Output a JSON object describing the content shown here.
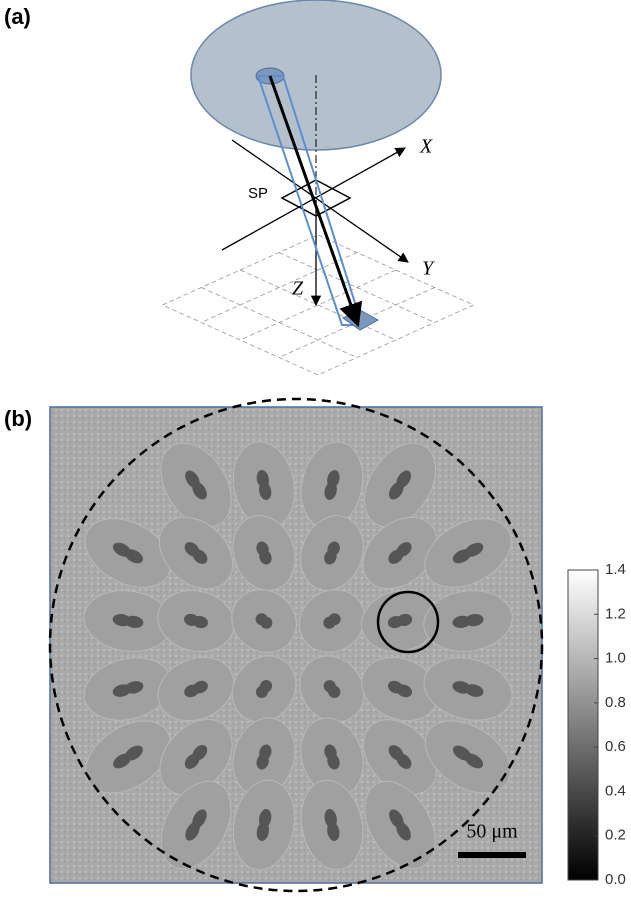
{
  "panel_a": {
    "label": "(a)",
    "axis_x": "X",
    "axis_y": "Y",
    "axis_z": "Z",
    "plane_label": "SP"
  },
  "panel_b": {
    "label": "(b)",
    "scale_bar": "50 μm",
    "colorbar": {
      "lim": [
        0,
        1.4
      ],
      "ticks": [
        {
          "value": 0,
          "label": "0.0"
        },
        0.2,
        0.4,
        0.6,
        0.8,
        {
          "value": 1,
          "label": "1.0"
        },
        1.2,
        1.4
      ]
    }
  }
}
